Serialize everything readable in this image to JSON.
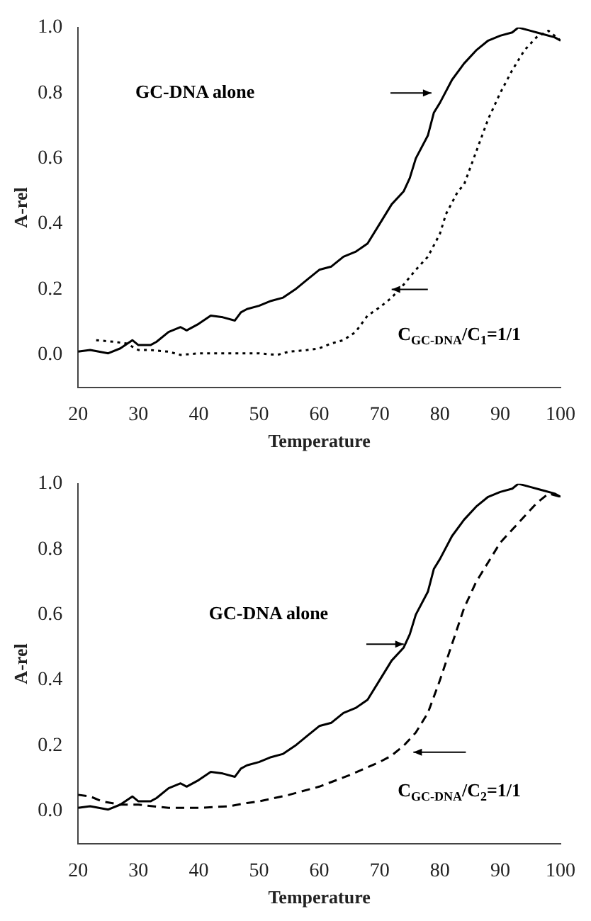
{
  "chart_data": [
    {
      "type": "line",
      "xlabel": "Temperature",
      "ylabel": "A-rel",
      "xlim": [
        20,
        100
      ],
      "ylim": [
        -0.1,
        1.0
      ],
      "xticks": [
        20,
        30,
        40,
        50,
        60,
        70,
        80,
        90,
        100
      ],
      "yticks": [
        {
          "value": 0,
          "label": "0.0"
        },
        {
          "value": 0.2,
          "label": "0.2"
        },
        {
          "value": 0.4,
          "label": "0.4"
        },
        {
          "value": 0.6,
          "label": "0.6"
        },
        {
          "value": 0.8,
          "label": "0.8"
        },
        {
          "value": 1,
          "label": "1.0"
        }
      ],
      "grid": false,
      "legend": false,
      "marker": "none",
      "annotations": [
        "GC-DNA alone",
        "C$_{GC-DNA}$/C$_{1}$=1/1"
      ],
      "series": [
        {
          "color": "#000000",
          "line_style": "solid",
          "x": [
            20,
            22,
            25,
            27,
            29,
            30,
            32,
            33,
            35,
            37,
            38,
            40,
            42,
            44,
            46,
            47,
            48,
            50,
            52,
            54,
            56,
            58,
            60,
            62,
            64,
            66,
            68,
            70,
            72,
            74,
            75,
            76,
            78,
            79,
            80,
            82,
            84,
            86,
            88,
            90,
            92,
            93,
            95,
            97,
            99,
            100
          ],
          "values": [
            0.01,
            0.015,
            0.005,
            0.02,
            0.045,
            0.03,
            0.03,
            0.04,
            0.07,
            0.085,
            0.075,
            0.095,
            0.12,
            0.115,
            0.105,
            0.13,
            0.14,
            0.15,
            0.165,
            0.175,
            0.2,
            0.23,
            0.26,
            0.27,
            0.3,
            0.315,
            0.34,
            0.4,
            0.46,
            0.5,
            0.54,
            0.6,
            0.67,
            0.74,
            0.77,
            0.84,
            0.89,
            0.93,
            0.96,
            0.975,
            0.985,
            1.0,
            0.99,
            0.98,
            0.97,
            0.96
          ]
        },
        {
          "color": "#000000",
          "line_style": "dotted",
          "x": [
            23,
            26,
            28,
            30,
            32,
            35,
            37,
            40,
            45,
            50,
            53,
            55,
            58,
            60,
            62,
            64,
            66,
            68,
            70,
            72,
            74,
            76,
            78,
            80,
            81,
            83,
            84,
            86,
            88,
            90,
            92,
            94,
            96,
            98,
            100
          ],
          "values": [
            0.045,
            0.04,
            0.035,
            0.015,
            0.015,
            0.01,
            0.0,
            0.005,
            0.005,
            0.005,
            0.0,
            0.01,
            0.015,
            0.02,
            0.035,
            0.045,
            0.07,
            0.12,
            0.145,
            0.175,
            0.215,
            0.26,
            0.3,
            0.37,
            0.43,
            0.5,
            0.52,
            0.62,
            0.72,
            0.8,
            0.87,
            0.93,
            0.97,
            0.99,
            0.96
          ]
        }
      ]
    },
    {
      "type": "line",
      "xlabel": "Temperature",
      "ylabel": "A-rel",
      "xlim": [
        20,
        100
      ],
      "ylim": [
        -0.1,
        1.0
      ],
      "xticks": [
        20,
        30,
        40,
        50,
        60,
        70,
        80,
        90,
        100
      ],
      "yticks": [
        {
          "value": 0,
          "label": "0.0"
        },
        {
          "value": 0.2,
          "label": "0.2"
        },
        {
          "value": 0.4,
          "label": "0.4"
        },
        {
          "value": 0.6,
          "label": "0.6"
        },
        {
          "value": 0.8,
          "label": "0.8"
        },
        {
          "value": 1,
          "label": "1.0"
        }
      ],
      "grid": false,
      "legend": false,
      "marker": "none",
      "annotations": [
        "GC-DNA alone",
        "C$_{GC-DNA}$/C$_{2}$=1/1"
      ],
      "series": [
        {
          "color": "#000000",
          "line_style": "solid",
          "x": [
            20,
            22,
            25,
            27,
            29,
            30,
            32,
            33,
            35,
            37,
            38,
            40,
            42,
            44,
            46,
            47,
            48,
            50,
            52,
            54,
            56,
            58,
            60,
            62,
            64,
            66,
            68,
            70,
            72,
            74,
            75,
            76,
            78,
            79,
            80,
            82,
            84,
            86,
            88,
            90,
            92,
            93,
            95,
            97,
            99,
            100
          ],
          "values": [
            0.01,
            0.015,
            0.005,
            0.02,
            0.045,
            0.03,
            0.03,
            0.04,
            0.07,
            0.085,
            0.075,
            0.095,
            0.12,
            0.115,
            0.105,
            0.13,
            0.14,
            0.15,
            0.165,
            0.175,
            0.2,
            0.23,
            0.26,
            0.27,
            0.3,
            0.315,
            0.34,
            0.4,
            0.46,
            0.5,
            0.54,
            0.6,
            0.67,
            0.74,
            0.77,
            0.84,
            0.89,
            0.93,
            0.96,
            0.975,
            0.985,
            1.0,
            0.99,
            0.98,
            0.97,
            0.96
          ]
        },
        {
          "color": "#000000",
          "line_style": "dashed",
          "x": [
            20,
            22,
            24,
            27,
            30,
            35,
            40,
            45,
            48,
            50,
            55,
            60,
            65,
            70,
            72,
            74,
            76,
            78,
            80,
            82,
            84,
            86,
            88,
            90,
            92,
            94,
            96,
            98,
            100
          ],
          "values": [
            0.05,
            0.045,
            0.03,
            0.02,
            0.02,
            0.01,
            0.01,
            0.015,
            0.025,
            0.03,
            0.05,
            0.075,
            0.11,
            0.15,
            0.17,
            0.2,
            0.24,
            0.3,
            0.4,
            0.51,
            0.62,
            0.7,
            0.76,
            0.82,
            0.86,
            0.9,
            0.94,
            0.97,
            0.96
          ]
        }
      ]
    }
  ]
}
